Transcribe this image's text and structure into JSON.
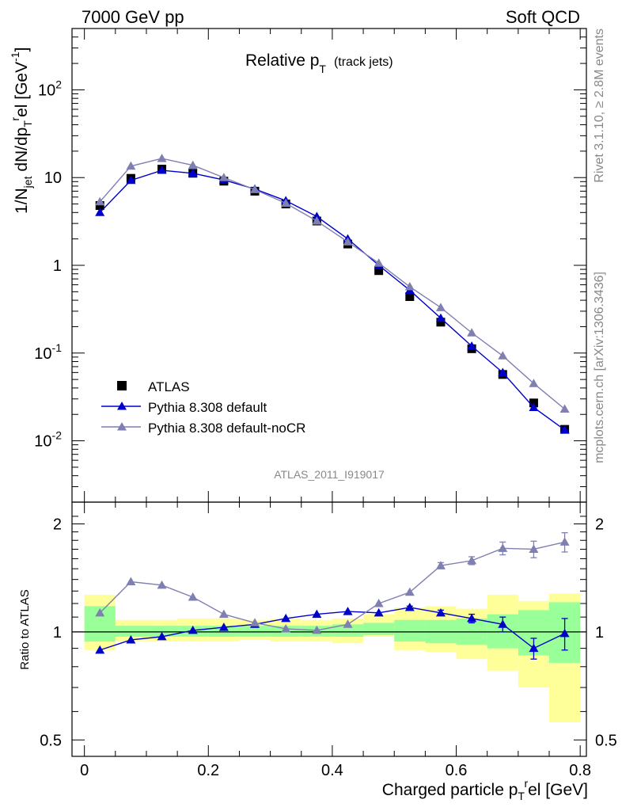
{
  "header": {
    "left": "7000 GeV pp",
    "right": "Soft QCD"
  },
  "side": {
    "rivet": "Rivet 3.1.10, ≥ 2.8M events",
    "mcplots": "mcplots.cern.ch [arXiv:1306.3436]"
  },
  "chart_data": [
    {
      "type": "scatter",
      "panel": "main",
      "title": "Relative p",
      "title_sub": "T",
      "title_note": "(track jets)",
      "ylabel": "1/N_jet dN/dp_T^rel [GeV^-1]",
      "yscale": "log",
      "ylim": [
        0.002,
        500
      ],
      "xlim": [
        -0.02,
        0.81
      ],
      "watermark": "ATLAS_2011_I919017",
      "grid": false,
      "legend_position": "bottom-left",
      "x": [
        0.025,
        0.075,
        0.125,
        0.175,
        0.225,
        0.275,
        0.325,
        0.375,
        0.425,
        0.475,
        0.525,
        0.575,
        0.625,
        0.675,
        0.725,
        0.775
      ],
      "series": [
        {
          "name": "ATLAS",
          "color": "#000000",
          "marker": "square",
          "values": [
            4.8,
            9.8,
            12.5,
            11.2,
            9.1,
            7.0,
            5.0,
            3.2,
            1.75,
            0.87,
            0.44,
            0.225,
            0.112,
            0.057,
            0.027,
            0.0135
          ]
        },
        {
          "name": "Pythia 8.308 default",
          "color": "#0000cc",
          "marker": "triangle",
          "values": [
            4.0,
            9.3,
            12.1,
            11.2,
            9.4,
            7.4,
            5.45,
            3.6,
            2.0,
            1.0,
            0.52,
            0.25,
            0.12,
            0.06,
            0.024,
            0.0133
          ]
        },
        {
          "name": "Pythia 8.308 default-noCR",
          "color": "#7f7fb2",
          "marker": "triangle",
          "values": [
            5.3,
            13.5,
            16.5,
            13.8,
            10.0,
            7.3,
            5.1,
            3.2,
            1.85,
            1.06,
            0.57,
            0.33,
            0.17,
            0.093,
            0.045,
            0.023
          ]
        }
      ]
    },
    {
      "type": "scatter",
      "panel": "ratio",
      "ylabel": "Ratio to ATLAS",
      "xlabel": "Charged particle p_T^rel [GeV]",
      "yscale": "log",
      "ylim": [
        0.45,
        2.3
      ],
      "xlim": [
        -0.02,
        0.81
      ],
      "xticks": [
        "0",
        "0.2",
        "0.4",
        "0.6",
        "0.8"
      ],
      "yticks": [
        "0.5",
        "1",
        "2"
      ],
      "x": [
        0.025,
        0.075,
        0.125,
        0.175,
        0.225,
        0.275,
        0.325,
        0.375,
        0.425,
        0.475,
        0.525,
        0.575,
        0.625,
        0.675,
        0.725,
        0.775
      ],
      "bins": [
        0.0,
        0.05,
        0.1,
        0.15,
        0.2,
        0.25,
        0.3,
        0.35,
        0.4,
        0.45,
        0.5,
        0.55,
        0.6,
        0.65,
        0.7,
        0.75,
        0.8
      ],
      "band_yellow": [
        [
          0.89,
          1.27
        ],
        [
          0.94,
          1.08
        ],
        [
          0.94,
          1.08
        ],
        [
          0.94,
          1.09
        ],
        [
          0.94,
          1.09
        ],
        [
          0.95,
          1.08
        ],
        [
          0.94,
          1.09
        ],
        [
          0.94,
          1.08
        ],
        [
          0.93,
          1.09
        ],
        [
          0.97,
          1.12
        ],
        [
          0.89,
          1.17
        ],
        [
          0.88,
          1.18
        ],
        [
          0.84,
          1.16
        ],
        [
          0.78,
          1.27
        ],
        [
          0.7,
          1.22
        ],
        [
          0.56,
          1.28
        ]
      ],
      "band_green": [
        [
          0.94,
          1.18
        ],
        [
          0.97,
          1.04
        ],
        [
          0.97,
          1.04
        ],
        [
          0.97,
          1.04
        ],
        [
          0.97,
          1.04
        ],
        [
          0.97,
          1.04
        ],
        [
          0.97,
          1.04
        ],
        [
          0.97,
          1.04
        ],
        [
          0.97,
          1.05
        ],
        [
          0.98,
          1.06
        ],
        [
          0.94,
          1.08
        ],
        [
          0.93,
          1.08
        ],
        [
          0.92,
          1.09
        ],
        [
          0.9,
          1.12
        ],
        [
          0.86,
          1.15
        ],
        [
          0.82,
          1.21
        ]
      ],
      "series": [
        {
          "name": "Pythia 8.308 default",
          "color": "#0000cc",
          "values": [
            0.89,
            0.95,
            0.97,
            1.01,
            1.03,
            1.05,
            1.09,
            1.12,
            1.14,
            1.13,
            1.17,
            1.13,
            1.09,
            1.05,
            0.9,
            0.99
          ],
          "errors": [
            0.0,
            0.0,
            0.0,
            0.0,
            0.0,
            0.0,
            0.0,
            0.0,
            0.0,
            0.0,
            0.01,
            0.02,
            0.03,
            0.05,
            0.06,
            0.1
          ]
        },
        {
          "name": "Pythia 8.308 default-noCR",
          "color": "#7f7fb2",
          "values": [
            1.13,
            1.38,
            1.35,
            1.25,
            1.12,
            1.06,
            1.02,
            1.01,
            1.05,
            1.2,
            1.29,
            1.53,
            1.58,
            1.71,
            1.7,
            1.78
          ],
          "errors": [
            0.0,
            0.0,
            0.0,
            0.0,
            0.0,
            0.0,
            0.0,
            0.0,
            0.0,
            0.0,
            0.0,
            0.03,
            0.04,
            0.07,
            0.09,
            0.11
          ]
        }
      ]
    }
  ]
}
